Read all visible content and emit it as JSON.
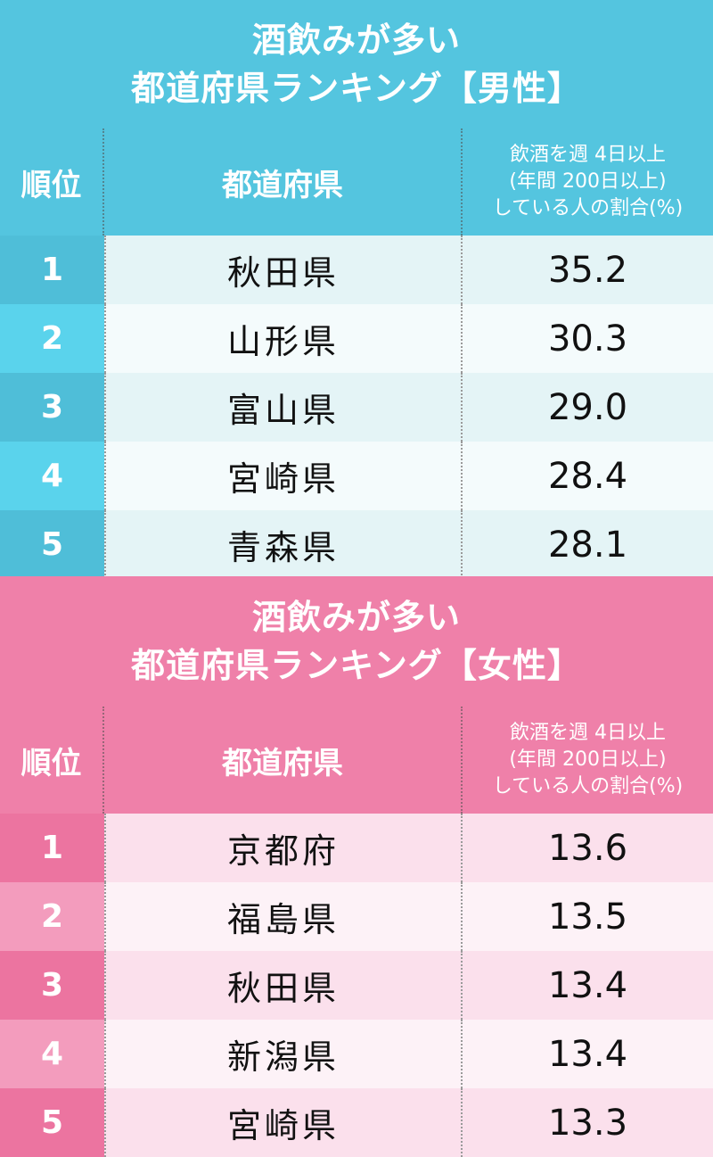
{
  "colors": {
    "male_accent": "#54c5df",
    "female_accent": "#ef80a9"
  },
  "chart_data": [
    {
      "type": "table",
      "title_line1": "酒飲みが多い",
      "title_line2": "都道府県ランキング【男性】",
      "columns": {
        "rank": "順位",
        "prefecture": "都道府県",
        "value_line1": "飲酒を週 4日以上",
        "value_line2": "(年間 200日以上)",
        "value_line3": "している人の割合(%)"
      },
      "rows": [
        {
          "rank": "1",
          "prefecture": "秋田県",
          "value": "35.2"
        },
        {
          "rank": "2",
          "prefecture": "山形県",
          "value": "30.3"
        },
        {
          "rank": "3",
          "prefecture": "富山県",
          "value": "29.0"
        },
        {
          "rank": "4",
          "prefecture": "宮崎県",
          "value": "28.4"
        },
        {
          "rank": "5",
          "prefecture": "青森県",
          "value": "28.1"
        }
      ]
    },
    {
      "type": "table",
      "title_line1": "酒飲みが多い",
      "title_line2": "都道府県ランキング【女性】",
      "columns": {
        "rank": "順位",
        "prefecture": "都道府県",
        "value_line1": "飲酒を週 4日以上",
        "value_line2": "(年間 200日以上)",
        "value_line3": "している人の割合(%)"
      },
      "rows": [
        {
          "rank": "1",
          "prefecture": "京都府",
          "value": "13.6"
        },
        {
          "rank": "2",
          "prefecture": "福島県",
          "value": "13.5"
        },
        {
          "rank": "3",
          "prefecture": "秋田県",
          "value": "13.4"
        },
        {
          "rank": "4",
          "prefecture": "新潟県",
          "value": "13.4"
        },
        {
          "rank": "5",
          "prefecture": "宮崎県",
          "value": "13.3"
        }
      ]
    }
  ]
}
